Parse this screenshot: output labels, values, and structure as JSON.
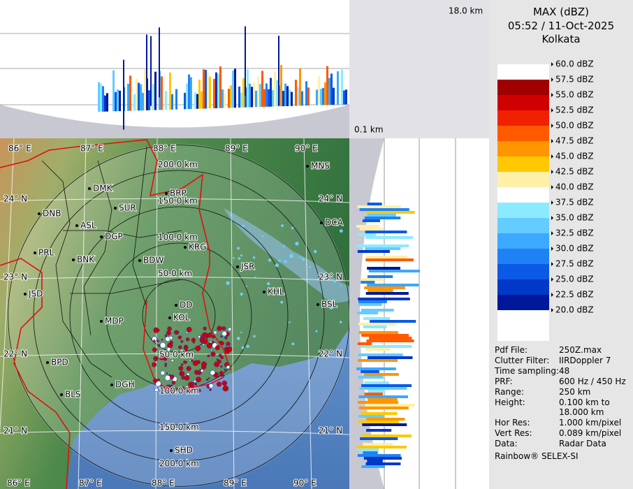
{
  "profile": {
    "top_height": "18.0 km",
    "bottom_height": "0.1 km"
  },
  "header": {
    "product": "MAX (dBZ)",
    "time": "05:52 / 11-Oct-2025",
    "site": "Kolkata"
  },
  "legend": [
    {
      "label": "60.0 dBZ",
      "color": "#ffffff"
    },
    {
      "label": "57.5 dBZ",
      "color": "#a00000"
    },
    {
      "label": "55.0 dBZ",
      "color": "#d00000"
    },
    {
      "label": "52.5 dBZ",
      "color": "#f02000"
    },
    {
      "label": "50.0 dBZ",
      "color": "#ff5a00"
    },
    {
      "label": "47.5 dBZ",
      "color": "#ff9600"
    },
    {
      "label": "45.0 dBZ",
      "color": "#ffc800"
    },
    {
      "label": "42.5 dBZ",
      "color": "#fff0a8"
    },
    {
      "label": "40.0 dBZ",
      "color": "#ffffff"
    },
    {
      "label": "37.5 dBZ",
      "color": "#8ceaff"
    },
    {
      "label": "35.0 dBZ",
      "color": "#64ccff"
    },
    {
      "label": "32.5 dBZ",
      "color": "#3ca8ff"
    },
    {
      "label": "30.0 dBZ",
      "color": "#1e82f5"
    },
    {
      "label": "27.5 dBZ",
      "color": "#0a5ae6"
    },
    {
      "label": "25.0 dBZ",
      "color": "#0038c8"
    },
    {
      "label": "22.5 dBZ",
      "color": "#00189a"
    },
    {
      "label": "20.0 dBZ",
      "color": "#ffffff"
    }
  ],
  "info": [
    {
      "label": "Pdf File:",
      "value": "250Z.max"
    },
    {
      "label": "Clutter Filter:",
      "value": "IIRDoppler 7"
    },
    {
      "label": "Time sampling:",
      "value": "48"
    },
    {
      "label": "PRF:",
      "value": "600 Hz / 450 Hz"
    },
    {
      "label": "Range:",
      "value": "250 km"
    },
    {
      "label": "Height:",
      "value": "0.100 km to 18.000 km"
    },
    {
      "label": "Hor Res:",
      "value": "1.000 km/pixel"
    },
    {
      "label": "Vert Res:",
      "value": "0.089 km/pixel"
    },
    {
      "label": "Data:",
      "value": "Radar Data"
    }
  ],
  "footer": "Rainbow® SELEX-SI",
  "map": {
    "longitudes": [
      "86° E",
      "87° E",
      "88° E",
      "89° E",
      "90° E"
    ],
    "latitudes": [
      "24° N",
      "23° N",
      "22° N",
      "21° N"
    ],
    "ranges": [
      "50.0 km",
      "100.0 km",
      "150.0 km",
      "200.0 km"
    ],
    "cities": [
      "MNS",
      "DMK",
      "BRP",
      "DNB",
      "SUR",
      "ASL",
      "DCA",
      "DGP",
      "PRL",
      "KRG",
      "BNK",
      "BDW",
      "JSR",
      "KHL",
      "JSD",
      "BSL",
      "MDP",
      "DD",
      "KOL",
      "BPD",
      "DGH",
      "BLS",
      "SHD"
    ]
  }
}
